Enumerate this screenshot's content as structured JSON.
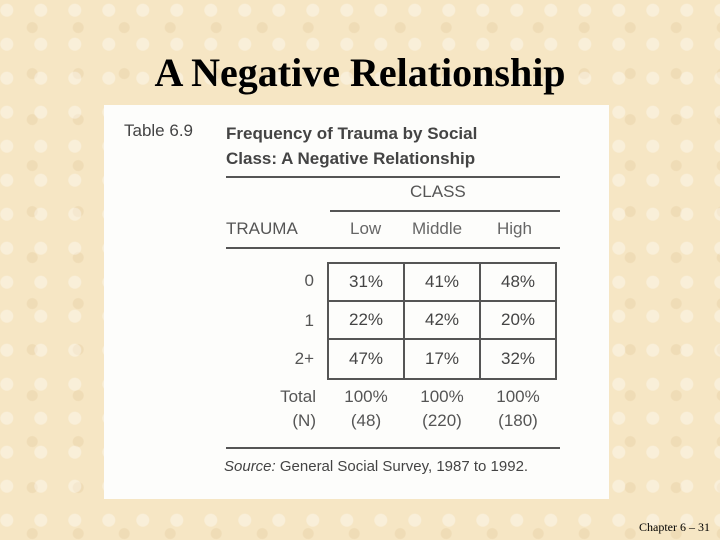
{
  "slide": {
    "title": "A Negative Relationship",
    "footer": "Chapter 6 – 31"
  },
  "table": {
    "number": "Table 6.9",
    "heading_line1": "Frequency of Trauma by Social",
    "heading_line2": "Class: A Negative Relationship",
    "column_group_label": "CLASS",
    "row_header": "TRAUMA",
    "columns": [
      "Low",
      "Middle",
      "High"
    ],
    "rows": [
      {
        "label": "0",
        "values": [
          "31%",
          "41%",
          "48%"
        ]
      },
      {
        "label": "1",
        "values": [
          "22%",
          "42%",
          "20%"
        ]
      },
      {
        "label": "2+",
        "values": [
          "47%",
          "17%",
          "32%"
        ]
      }
    ],
    "total": {
      "label": "Total",
      "values": [
        "100%",
        "100%",
        "100%"
      ]
    },
    "n": {
      "label": "(N)",
      "values": [
        "(48)",
        "(220)",
        "(180)"
      ]
    },
    "source_label": "Source:",
    "source_text": " General Social Survey, 1987 to 1992."
  }
}
